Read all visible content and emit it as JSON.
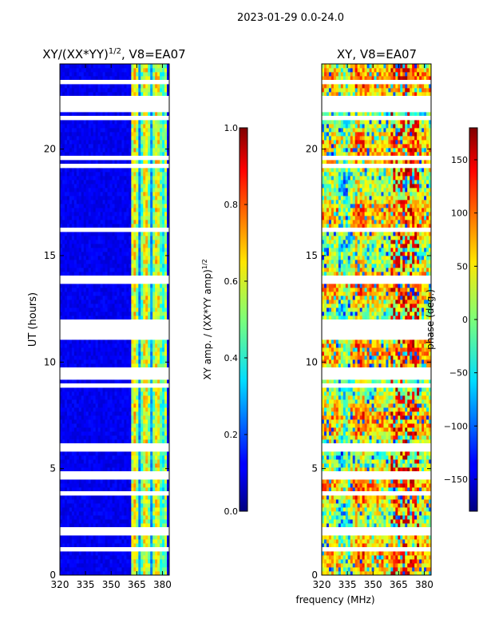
{
  "figure_title": "2023-01-29 0.0-24.0",
  "shared_xlabel": "frequency (MHz)",
  "chart_data": [
    {
      "type": "heatmap",
      "title_main": "XY/(XX*YY)",
      "title_sup": "1/2",
      "title_tail": ", V8=EA07",
      "xlabel": "",
      "ylabel": "UT (hours)",
      "xlim": [
        320,
        384
      ],
      "ylim": [
        0,
        24
      ],
      "xticks": [
        320,
        335,
        350,
        365,
        380
      ],
      "yticks": [
        0,
        5,
        10,
        15,
        20
      ],
      "colorbar": {
        "label_main": "XY amp. / (XX*YY amp)",
        "label_sup": "1/2",
        "range": [
          0.0,
          1.0
        ],
        "ticks": [
          "0.0",
          "0.2",
          "0.4",
          "0.6",
          "0.8",
          "1.0"
        ],
        "tick_values": [
          0.0,
          0.2,
          0.4,
          0.6,
          0.8,
          1.0
        ]
      }
    },
    {
      "type": "heatmap",
      "title": "XY, V8=EA07",
      "xlabel": "frequency (MHz)",
      "ylabel": "",
      "xlim": [
        320,
        384
      ],
      "ylim": [
        0,
        24
      ],
      "xticks": [
        320,
        335,
        350,
        365,
        380
      ],
      "yticks": [
        0,
        5,
        10,
        15,
        20
      ],
      "colorbar": {
        "label": "phase (deg.)",
        "range": [
          -180,
          180
        ],
        "ticks": [
          "150",
          "100",
          "50",
          "0",
          "−50",
          "−100",
          "−150"
        ],
        "tick_values": [
          150,
          100,
          50,
          0,
          -50,
          -100,
          -150
        ]
      }
    }
  ],
  "colors": {
    "jet_low": "#00007f",
    "jet_high": "#7f0000",
    "flagged": "#ffffff"
  }
}
